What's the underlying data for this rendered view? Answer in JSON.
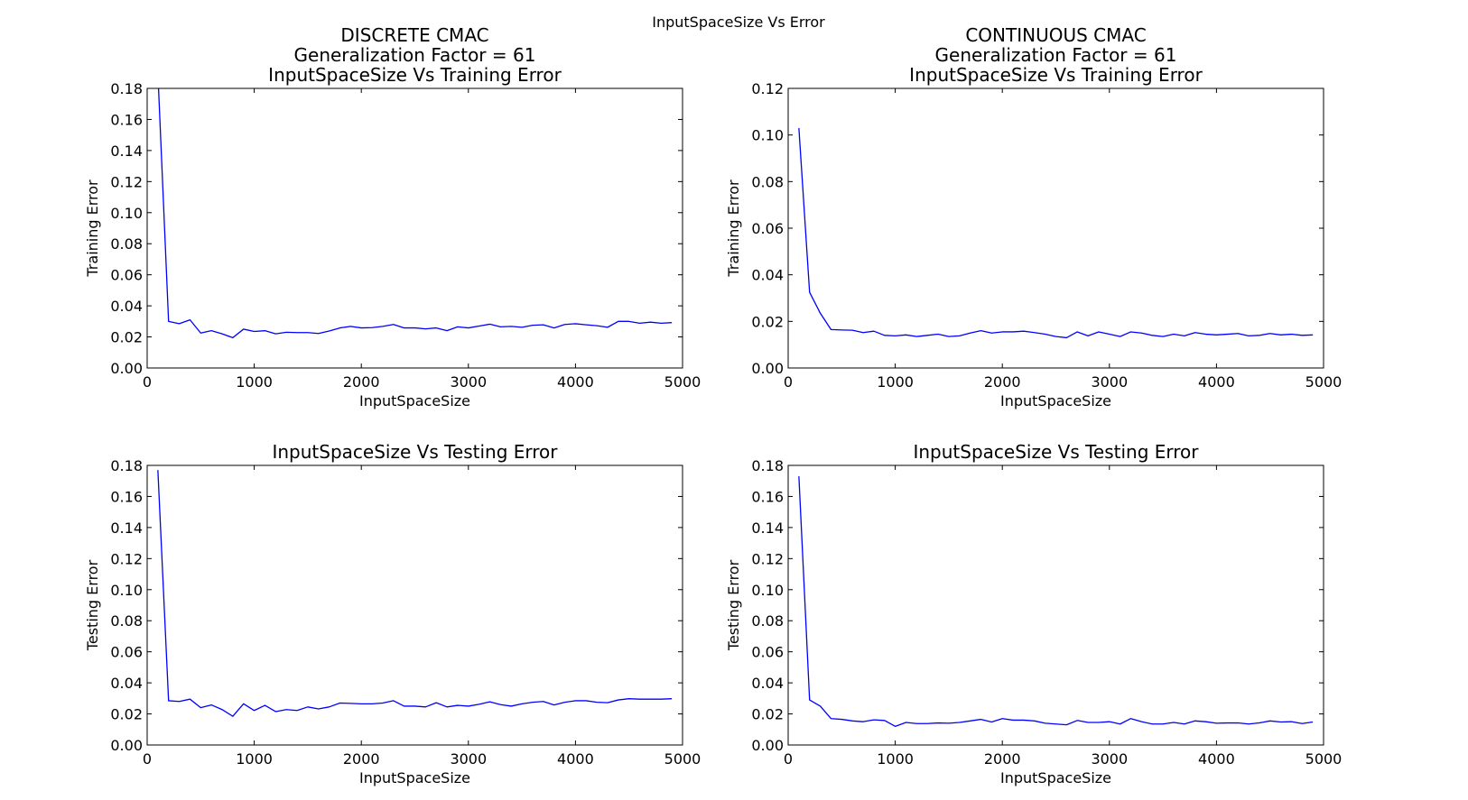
{
  "figure": {
    "suptitle": "InputSpaceSize Vs Error",
    "line_color": "#0000ff"
  },
  "chart_data": [
    {
      "type": "line",
      "title": [
        "DISCRETE CMAC",
        "Generalization Factor = 61",
        "InputSpaceSize Vs Training Error"
      ],
      "xlabel": "InputSpaceSize",
      "ylabel": "Training Error",
      "xlim": [
        0,
        5000
      ],
      "ylim": [
        0,
        0.18
      ],
      "xticks": [
        0,
        1000,
        2000,
        3000,
        4000,
        5000
      ],
      "yticks": [
        0.0,
        0.02,
        0.04,
        0.06,
        0.08,
        0.1,
        0.12,
        0.14,
        0.16,
        0.18
      ],
      "ytick_decimals": 2,
      "grid": false,
      "x": [
        100,
        200,
        300,
        400,
        500,
        600,
        700,
        800,
        900,
        1000,
        1100,
        1200,
        1300,
        1400,
        1500,
        1600,
        1700,
        1800,
        1900,
        2000,
        2100,
        2200,
        2300,
        2400,
        2500,
        2600,
        2700,
        2800,
        2900,
        3000,
        3100,
        3200,
        3300,
        3400,
        3500,
        3600,
        3700,
        3800,
        3900,
        4000,
        4100,
        4200,
        4300,
        4400,
        4500,
        4600,
        4700,
        4800,
        4900
      ],
      "y": [
        0.19,
        0.03,
        0.0285,
        0.031,
        0.0225,
        0.024,
        0.022,
        0.0195,
        0.025,
        0.0235,
        0.024,
        0.022,
        0.023,
        0.0228,
        0.0228,
        0.0222,
        0.0238,
        0.0258,
        0.0268,
        0.0258,
        0.026,
        0.0268,
        0.028,
        0.0258,
        0.0258,
        0.0252,
        0.0258,
        0.024,
        0.0265,
        0.0258,
        0.027,
        0.0282,
        0.0265,
        0.0268,
        0.0262,
        0.0275,
        0.0278,
        0.0258,
        0.028,
        0.0285,
        0.0278,
        0.0272,
        0.0262,
        0.03,
        0.03,
        0.0288,
        0.0295,
        0.0288,
        0.0292
      ]
    },
    {
      "type": "line",
      "title": [
        "CONTINUOUS CMAC",
        "Generalization Factor = 61",
        "InputSpaceSize Vs Training Error"
      ],
      "xlabel": "InputSpaceSize",
      "ylabel": "Training Error",
      "xlim": [
        0,
        5000
      ],
      "ylim": [
        0,
        0.12
      ],
      "xticks": [
        0,
        1000,
        2000,
        3000,
        4000,
        5000
      ],
      "yticks": [
        0.0,
        0.02,
        0.04,
        0.06,
        0.08,
        0.1,
        0.12
      ],
      "ytick_decimals": 2,
      "grid": false,
      "x": [
        100,
        200,
        300,
        400,
        500,
        600,
        700,
        800,
        900,
        1000,
        1100,
        1200,
        1300,
        1400,
        1500,
        1600,
        1700,
        1800,
        1900,
        2000,
        2100,
        2200,
        2300,
        2400,
        2500,
        2600,
        2700,
        2800,
        2900,
        3000,
        3100,
        3200,
        3300,
        3400,
        3500,
        3600,
        3700,
        3800,
        3900,
        4000,
        4100,
        4200,
        4300,
        4400,
        4500,
        4600,
        4700,
        4800,
        4900
      ],
      "y": [
        0.103,
        0.0325,
        0.0235,
        0.0165,
        0.0163,
        0.0162,
        0.0152,
        0.0158,
        0.014,
        0.0138,
        0.0142,
        0.0135,
        0.014,
        0.0145,
        0.0135,
        0.0138,
        0.015,
        0.016,
        0.015,
        0.0155,
        0.0155,
        0.0158,
        0.0152,
        0.0145,
        0.0135,
        0.013,
        0.0155,
        0.0138,
        0.0155,
        0.0145,
        0.0135,
        0.0155,
        0.015,
        0.014,
        0.0135,
        0.0145,
        0.0138,
        0.0152,
        0.0145,
        0.0142,
        0.0145,
        0.0148,
        0.0138,
        0.014,
        0.0148,
        0.0142,
        0.0145,
        0.014,
        0.0142
      ]
    },
    {
      "type": "line",
      "title": [
        "InputSpaceSize Vs Testing Error"
      ],
      "xlabel": "InputSpaceSize",
      "ylabel": "Testing Error",
      "xlim": [
        0,
        5000
      ],
      "ylim": [
        0,
        0.18
      ],
      "xticks": [
        0,
        1000,
        2000,
        3000,
        4000,
        5000
      ],
      "yticks": [
        0.0,
        0.02,
        0.04,
        0.06,
        0.08,
        0.1,
        0.12,
        0.14,
        0.16,
        0.18
      ],
      "ytick_decimals": 2,
      "grid": false,
      "x": [
        100,
        200,
        300,
        400,
        500,
        600,
        700,
        800,
        900,
        1000,
        1100,
        1200,
        1300,
        1400,
        1500,
        1600,
        1700,
        1800,
        1900,
        2000,
        2100,
        2200,
        2300,
        2400,
        2500,
        2600,
        2700,
        2800,
        2900,
        3000,
        3100,
        3200,
        3300,
        3400,
        3500,
        3600,
        3700,
        3800,
        3900,
        4000,
        4100,
        4200,
        4300,
        4400,
        4500,
        4600,
        4700,
        4800,
        4900
      ],
      "y": [
        0.177,
        0.0285,
        0.028,
        0.0295,
        0.024,
        0.0258,
        0.0228,
        0.0185,
        0.0265,
        0.0222,
        0.0255,
        0.0215,
        0.0228,
        0.0222,
        0.0245,
        0.0232,
        0.0245,
        0.027,
        0.0268,
        0.0265,
        0.0265,
        0.027,
        0.0285,
        0.025,
        0.025,
        0.0245,
        0.0272,
        0.0245,
        0.0255,
        0.025,
        0.0262,
        0.0278,
        0.026,
        0.025,
        0.0265,
        0.0275,
        0.028,
        0.0258,
        0.0275,
        0.0285,
        0.0285,
        0.0275,
        0.0272,
        0.029,
        0.0298,
        0.0295,
        0.0295,
        0.0295,
        0.0298
      ]
    },
    {
      "type": "line",
      "title": [
        "InputSpaceSize Vs Testing Error"
      ],
      "xlabel": "InputSpaceSize",
      "ylabel": "Testing Error",
      "xlim": [
        0,
        5000
      ],
      "ylim": [
        0,
        0.18
      ],
      "xticks": [
        0,
        1000,
        2000,
        3000,
        4000,
        5000
      ],
      "yticks": [
        0.0,
        0.02,
        0.04,
        0.06,
        0.08,
        0.1,
        0.12,
        0.14,
        0.16,
        0.18
      ],
      "ytick_decimals": 2,
      "grid": false,
      "x": [
        100,
        200,
        300,
        400,
        500,
        600,
        700,
        800,
        900,
        1000,
        1100,
        1200,
        1300,
        1400,
        1500,
        1600,
        1700,
        1800,
        1900,
        2000,
        2100,
        2200,
        2300,
        2400,
        2500,
        2600,
        2700,
        2800,
        2900,
        3000,
        3100,
        3200,
        3300,
        3400,
        3500,
        3600,
        3700,
        3800,
        3900,
        4000,
        4100,
        4200,
        4300,
        4400,
        4500,
        4600,
        4700,
        4800,
        4900
      ],
      "y": [
        0.173,
        0.029,
        0.025,
        0.017,
        0.0165,
        0.0155,
        0.015,
        0.0162,
        0.0158,
        0.012,
        0.0145,
        0.0138,
        0.0138,
        0.0142,
        0.014,
        0.0145,
        0.0155,
        0.0165,
        0.0148,
        0.017,
        0.016,
        0.016,
        0.0155,
        0.014,
        0.0135,
        0.013,
        0.0158,
        0.0145,
        0.0145,
        0.015,
        0.0135,
        0.017,
        0.015,
        0.0135,
        0.0135,
        0.0145,
        0.0135,
        0.0155,
        0.015,
        0.014,
        0.0142,
        0.0142,
        0.0135,
        0.0142,
        0.0155,
        0.0148,
        0.015,
        0.0138,
        0.0148
      ]
    }
  ]
}
